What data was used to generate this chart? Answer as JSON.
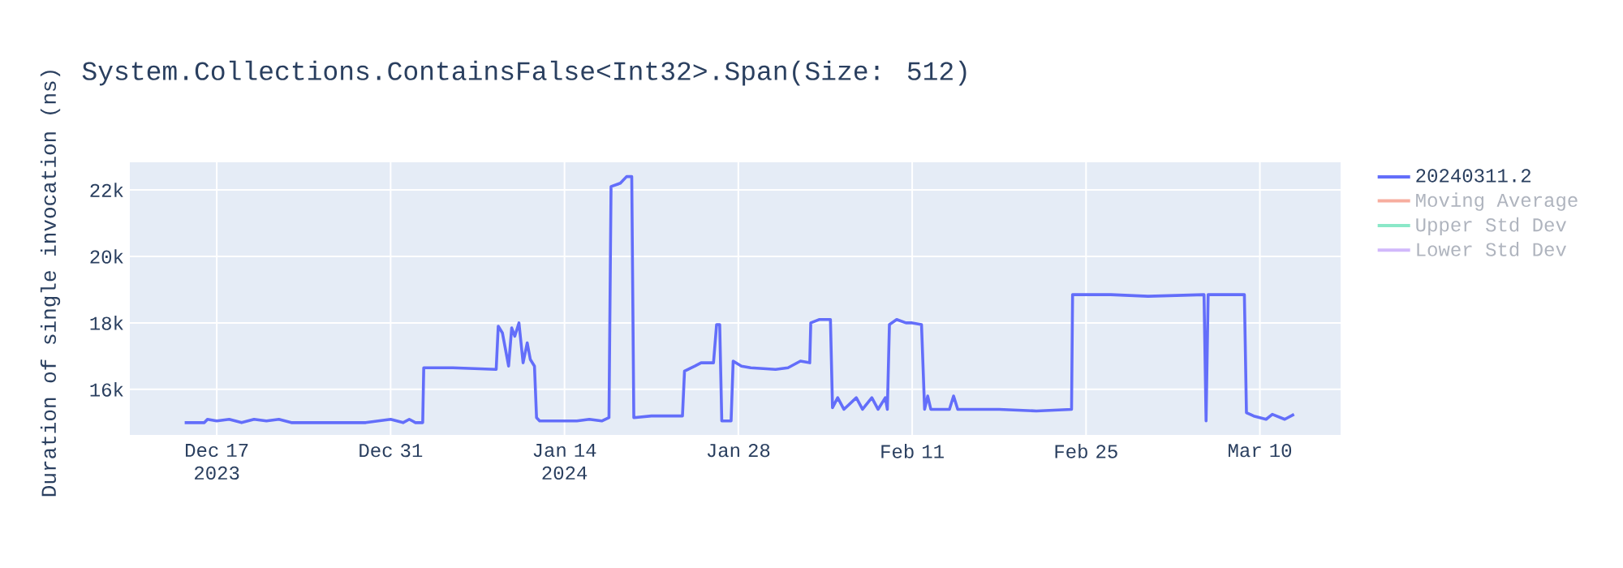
{
  "chart_data": {
    "type": "line",
    "title": "System.Collections.ContainsFalse<Int32>.Span(Size: 512)",
    "ylabel": "Duration of single invocation (ns)",
    "x": [
      "2023-12-14T10:00",
      "2023-12-16",
      "2023-12-16T06:00",
      "2023-12-17",
      "2023-12-18",
      "2023-12-19",
      "2023-12-20",
      "2023-12-21",
      "2023-12-22",
      "2023-12-23",
      "2023-12-26",
      "2023-12-29",
      "2023-12-31",
      "2024-01-01",
      "2024-01-01T12:00",
      "2024-01-02",
      "2024-01-02T14:00",
      "2024-01-02T16:00",
      "2024-01-05",
      "2024-01-08T12:00",
      "2024-01-08T16:00",
      "2024-01-09",
      "2024-01-09T12:00",
      "2024-01-09T18:00",
      "2024-01-10",
      "2024-01-10T08:00",
      "2024-01-10T16:00",
      "2024-01-11",
      "2024-01-11T06:00",
      "2024-01-11T14:00",
      "2024-01-11T18:00",
      "2024-01-12",
      "2024-01-15",
      "2024-01-16",
      "2024-01-17",
      "2024-01-17T14:00",
      "2024-01-17T18:00",
      "2024-01-18T12:00",
      "2024-01-19",
      "2024-01-19T10:00",
      "2024-01-19T14:00",
      "2024-01-21",
      "2024-01-23T12:00",
      "2024-01-23T16:00",
      "2024-01-24T12:00",
      "2024-01-25",
      "2024-01-26",
      "2024-01-26T06:00",
      "2024-01-26T12:00",
      "2024-01-26T16:00",
      "2024-01-27T10:00",
      "2024-01-27T14:00",
      "2024-01-28T06:00",
      "2024-01-29",
      "2024-01-31",
      "2024-02-01",
      "2024-02-02",
      "2024-02-02T18:00",
      "2024-02-02T20:00",
      "2024-02-03T12:00",
      "2024-02-04T10:00",
      "2024-02-04T14:00",
      "2024-02-05",
      "2024-02-05T12:00",
      "2024-02-06T12:00",
      "2024-02-07",
      "2024-02-07T18:00",
      "2024-02-08T06:00",
      "2024-02-08T20:00",
      "2024-02-09",
      "2024-02-09T04:00",
      "2024-02-09T18:00",
      "2024-02-10T12:00",
      "2024-02-11",
      "2024-02-11T18:00",
      "2024-02-12",
      "2024-02-12T06:00",
      "2024-02-12T12:00",
      "2024-02-14",
      "2024-02-14T08:00",
      "2024-02-14T16:00",
      "2024-02-18",
      "2024-02-21",
      "2024-02-23T20:00",
      "2024-02-23T22:00",
      "2024-02-27",
      "2024-03-01",
      "2024-03-05T12:00",
      "2024-03-05T16:00",
      "2024-03-05T20:00",
      "2024-03-08T18:00",
      "2024-03-08T22:00",
      "2024-03-09T12:00",
      "2024-03-10T12:00",
      "2024-03-11",
      "2024-03-12",
      "2024-03-12T18:00"
    ],
    "series": [
      {
        "name": "20240311.2",
        "color": "#636efa",
        "values": [
          15000,
          15000,
          15100,
          15050,
          15100,
          15000,
          15100,
          15050,
          15100,
          15000,
          15000,
          15000,
          15100,
          15000,
          15100,
          15000,
          15000,
          16650,
          16650,
          16600,
          17900,
          17700,
          16700,
          17850,
          17600,
          18000,
          16800,
          17400,
          16900,
          16700,
          15150,
          15050,
          15050,
          15100,
          15050,
          15150,
          22100,
          22200,
          22400,
          22400,
          15150,
          15200,
          15200,
          16550,
          16700,
          16800,
          16800,
          17950,
          17950,
          15050,
          15050,
          16850,
          16700,
          16650,
          16600,
          16650,
          16850,
          16800,
          18000,
          18100,
          18100,
          15450,
          15750,
          15400,
          15750,
          15400,
          15750,
          15400,
          15750,
          15400,
          17950,
          18100,
          18000,
          18000,
          17950,
          15400,
          15800,
          15400,
          15400,
          15800,
          15400,
          15400,
          15350,
          15400,
          18850,
          18850,
          18800,
          18850,
          15050,
          18850,
          18850,
          15300,
          15200,
          15100,
          15250,
          15100,
          15250
        ]
      },
      {
        "name": "Moving Average",
        "color": "#f7ad9f",
        "values": [
          null,
          null,
          null,
          null,
          null,
          null,
          null,
          null,
          null,
          null,
          null,
          null,
          null,
          null,
          null,
          null,
          null,
          null,
          null,
          null,
          null,
          null,
          null,
          null,
          null,
          null,
          null,
          null,
          null,
          null,
          null,
          null,
          null,
          null,
          null,
          null,
          null,
          null,
          null,
          null,
          null,
          null,
          null,
          null,
          null,
          null,
          null,
          null,
          null,
          null,
          null,
          null,
          null,
          null,
          null,
          null,
          null,
          null,
          null,
          null,
          null,
          null,
          null,
          null,
          null,
          null,
          null,
          null,
          null,
          null,
          null,
          null,
          null,
          null,
          null,
          null,
          null,
          null,
          null,
          null,
          null,
          null,
          null,
          null,
          null,
          null,
          null,
          null,
          null,
          null,
          null,
          null,
          null,
          null,
          null,
          null,
          null
        ]
      },
      {
        "name": "Upper Std Dev",
        "color": "#8ae8c8",
        "values": [
          null,
          null,
          null,
          null,
          null,
          null,
          null,
          null,
          null,
          null,
          null,
          null,
          null,
          null,
          null,
          null,
          null,
          null,
          null,
          null,
          null,
          null,
          null,
          null,
          null,
          null,
          null,
          null,
          null,
          null,
          null,
          null,
          null,
          null,
          null,
          null,
          null,
          null,
          null,
          null,
          null,
          null,
          null,
          null,
          null,
          null,
          null,
          null,
          null,
          null,
          null,
          null,
          null,
          null,
          null,
          null,
          null,
          null,
          null,
          null,
          null,
          null,
          null,
          null,
          null,
          null,
          null,
          null,
          null,
          null,
          null,
          null,
          null,
          null,
          null,
          null,
          null,
          null,
          null,
          null,
          null,
          null,
          null,
          null,
          null,
          null,
          null,
          null,
          null,
          null,
          null,
          null,
          null,
          null,
          null,
          null,
          null
        ]
      },
      {
        "name": "Lower Std Dev",
        "color": "#d1b8fb",
        "values": [
          null,
          null,
          null,
          null,
          null,
          null,
          null,
          null,
          null,
          null,
          null,
          null,
          null,
          null,
          null,
          null,
          null,
          null,
          null,
          null,
          null,
          null,
          null,
          null,
          null,
          null,
          null,
          null,
          null,
          null,
          null,
          null,
          null,
          null,
          null,
          null,
          null,
          null,
          null,
          null,
          null,
          null,
          null,
          null,
          null,
          null,
          null,
          null,
          null,
          null,
          null,
          null,
          null,
          null,
          null,
          null,
          null,
          null,
          null,
          null,
          null,
          null,
          null,
          null,
          null,
          null,
          null,
          null,
          null,
          null,
          null,
          null,
          null,
          null,
          null,
          null,
          null,
          null,
          null,
          null,
          null,
          null,
          null,
          null,
          null,
          null,
          null,
          null,
          null,
          null,
          null,
          null,
          null,
          null,
          null,
          null,
          null
        ]
      }
    ],
    "xlim": [
      "2023-12-10",
      "2024-03-16T12:00"
    ],
    "xticks": [
      {
        "value": "2023-12-17",
        "label": "Dec 17 2023"
      },
      {
        "value": "2023-12-31",
        "label": "Dec 31"
      },
      {
        "value": "2024-01-14",
        "label": "Jan 14 2024"
      },
      {
        "value": "2024-01-28",
        "label": "Jan 28"
      },
      {
        "value": "2024-02-11",
        "label": "Feb 11"
      },
      {
        "value": "2024-02-25",
        "label": "Feb 25"
      },
      {
        "value": "2024-03-10",
        "label": "Mar 10"
      }
    ],
    "ylim": [
      14630,
      22830
    ],
    "yticks": [
      {
        "value": 16000,
        "label": "16k"
      },
      {
        "value": 18000,
        "label": "18k"
      },
      {
        "value": 20000,
        "label": "20k"
      },
      {
        "value": 22000,
        "label": "22k"
      }
    ],
    "grid": true,
    "legend": "right",
    "marker": "none",
    "line_style": "solid"
  }
}
